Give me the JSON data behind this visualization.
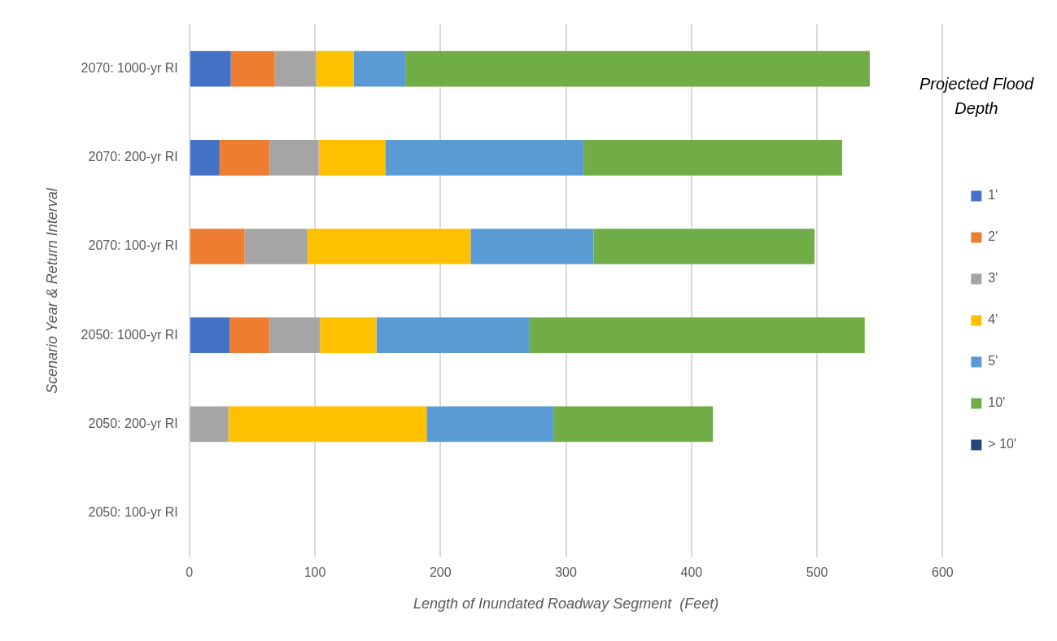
{
  "chart_data": {
    "type": "bar",
    "orientation": "horizontal",
    "stacked": true,
    "xlabel": "Length of Inundated Roadway Segment  (Feet)",
    "ylabel": "Scenario Year & Return Interval",
    "legend_title": "Projected Flood Depth",
    "legend": "right",
    "grid": "x",
    "categories": [
      "2070: 1000-yr RI",
      "2070: 200-yr RI",
      "2070: 100-yr RI",
      "2050: 1000-yr RI",
      "2050: 200-yr RI",
      "2050: 100-yr RI"
    ],
    "xlim": [
      0,
      600
    ],
    "xticks": [
      0,
      100,
      200,
      300,
      400,
      500,
      600
    ],
    "series": [
      {
        "name": "1'",
        "color": "#4472c4",
        "values": [
          33,
          24,
          0,
          32,
          0,
          0
        ]
      },
      {
        "name": "2'",
        "color": "#ed7d31",
        "values": [
          35,
          40,
          44,
          32,
          0,
          0
        ]
      },
      {
        "name": "3'",
        "color": "#a5a5a5",
        "values": [
          33,
          39,
          50,
          40,
          31,
          0
        ]
      },
      {
        "name": "4'",
        "color": "#ffc000",
        "values": [
          30,
          53,
          130,
          45,
          158,
          0
        ]
      },
      {
        "name": "5'",
        "color": "#5b9bd5",
        "values": [
          41,
          158,
          98,
          122,
          101,
          0
        ]
      },
      {
        "name": "10'",
        "color": "#70ad47",
        "values": [
          370,
          206,
          176,
          267,
          127,
          0
        ]
      },
      {
        "name": "> 10'",
        "color": "#264478",
        "values": [
          0,
          0,
          0,
          0,
          0,
          0
        ]
      }
    ]
  }
}
